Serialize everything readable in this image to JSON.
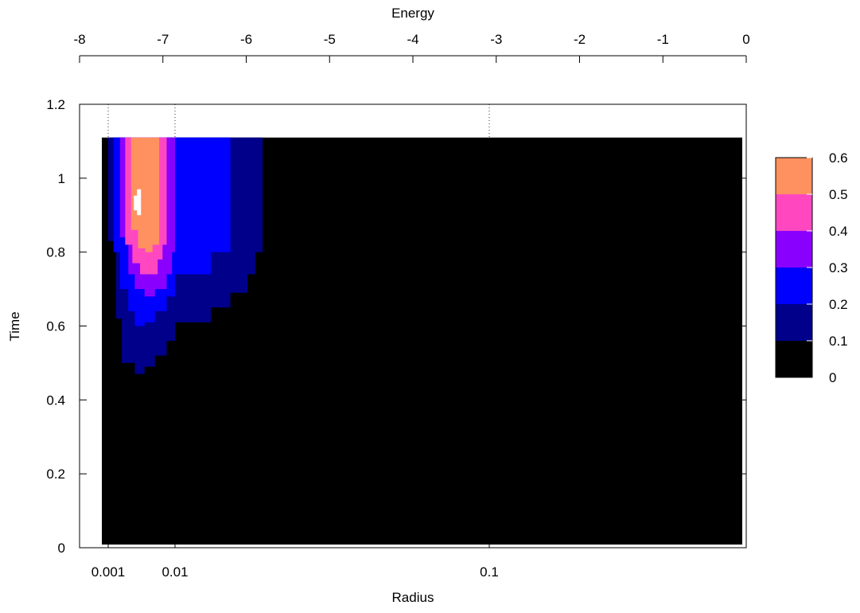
{
  "chart_data": {
    "type": "heatmap",
    "xlabel": "Radius",
    "ylabel": "Time",
    "x2label": "Energy",
    "x_scale": "log",
    "x_ticks": [
      0.001,
      0.01,
      0.1
    ],
    "x_tick_labels": [
      "0.001",
      "0.01",
      "0.1"
    ],
    "y_ticks": [
      0,
      0.2,
      0.4,
      0.6,
      0.8,
      1,
      1.2
    ],
    "y_tick_labels": [
      "0",
      "0.2",
      "0.4",
      "0.6",
      "0.8",
      "1",
      "1.2"
    ],
    "ylim": [
      0,
      1.2
    ],
    "x2_ticks": [
      -8,
      -7,
      -6,
      -5,
      -4,
      -3,
      -2,
      -1,
      0
    ],
    "x2_tick_labels": [
      "-8",
      "-7",
      "-6",
      "-5",
      "-4",
      "-3",
      "-2",
      "-1",
      "0"
    ],
    "x2lim": [
      -8,
      0
    ],
    "data_ylim": [
      0,
      1.11
    ],
    "grid": "vertical dotted lines at x ticks",
    "colorbar": {
      "range": [
        0,
        0.6
      ],
      "tick_labels": [
        "0",
        "0.1",
        "0.2",
        "0.3",
        "0.4",
        "0.5",
        "0.6"
      ],
      "levels": [
        {
          "from": 0.0,
          "to": 0.1,
          "color": "#000000"
        },
        {
          "from": 0.1,
          "to": 0.2,
          "color": "#00008b"
        },
        {
          "from": 0.2,
          "to": 0.3,
          "color": "#0000ff"
        },
        {
          "from": 0.3,
          "to": 0.4,
          "color": "#8a00ff"
        },
        {
          "from": 0.4,
          "to": 0.5,
          "color": "#ff48c0"
        },
        {
          "from": 0.5,
          "to": 0.6,
          "color": "#ff9160"
        },
        {
          "from": 0.6,
          "to": 0.7,
          "color": "#ffffff"
        }
      ]
    },
    "contour_onset_times": {
      "note": "approximate time at which the value first exceeds each level, by radius",
      "levels": [
        {
          "level": 0.1,
          "radius": [
            0.00087,
            0.001,
            0.0013,
            0.0016,
            0.0025,
            0.0035,
            0.005,
            0.0075,
            0.01,
            0.013,
            0.015,
            0.017,
            0.018,
            0.019,
            0.019
          ],
          "time": [
            1.11,
            0.83,
            0.62,
            0.5,
            0.47,
            0.49,
            0.52,
            0.56,
            0.61,
            0.65,
            0.69,
            0.74,
            0.8,
            0.85,
            1.11
          ]
        },
        {
          "level": 0.2,
          "radius": [
            0.001,
            0.0012,
            0.0015,
            0.002,
            0.0025,
            0.0035,
            0.005,
            0.0075,
            0.01,
            0.013,
            0.015,
            0.015
          ],
          "time": [
            1.11,
            0.8,
            0.7,
            0.64,
            0.6,
            0.61,
            0.64,
            0.68,
            0.74,
            0.8,
            0.85,
            1.11
          ]
        },
        {
          "level": 0.3,
          "radius": [
            0.0012,
            0.0015,
            0.002,
            0.0025,
            0.0035,
            0.005,
            0.0075,
            0.009,
            0.01,
            0.01
          ],
          "time": [
            1.11,
            0.84,
            0.74,
            0.7,
            0.68,
            0.7,
            0.74,
            0.8,
            0.85,
            1.11
          ]
        },
        {
          "level": 0.4,
          "radius": [
            0.0015,
            0.0018,
            0.0023,
            0.003,
            0.0042,
            0.0055,
            0.0065,
            0.0075,
            0.0075
          ],
          "time": [
            1.11,
            0.82,
            0.77,
            0.74,
            0.74,
            0.78,
            0.82,
            0.88,
            1.11
          ]
        },
        {
          "level": 0.5,
          "radius": [
            0.0018,
            0.0022,
            0.0028,
            0.0036,
            0.0046,
            0.0058,
            0.0058
          ],
          "time": [
            1.11,
            0.86,
            0.81,
            0.8,
            0.82,
            0.87,
            1.11
          ]
        }
      ]
    },
    "peak": {
      "radius": 0.0027,
      "time_range": [
        0.9,
        0.97
      ],
      "value_level": 0.6
    }
  }
}
